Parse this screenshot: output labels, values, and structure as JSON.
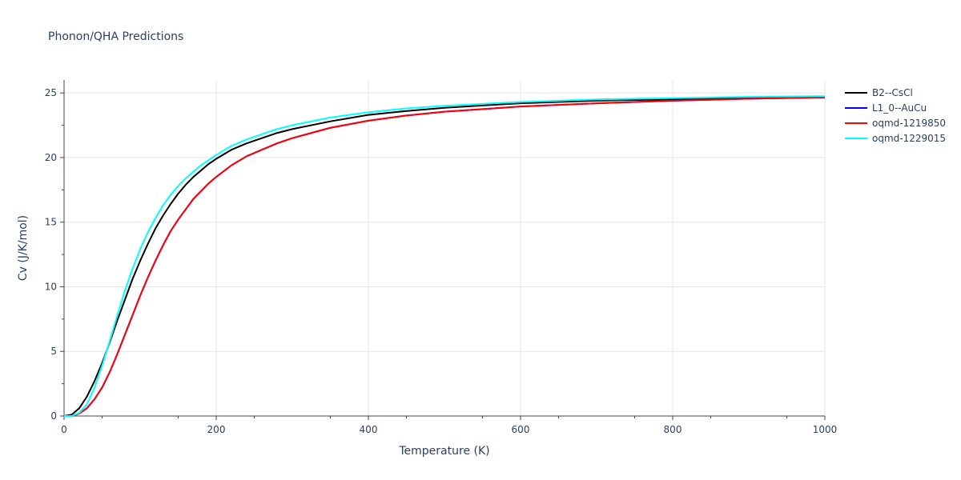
{
  "chart_data": {
    "type": "line",
    "title": "Phonon/QHA Predictions",
    "xlabel": "Temperature (K)",
    "ylabel": "Cv (J/K/mol)",
    "xlim": [
      0,
      1000
    ],
    "ylim": [
      0,
      26
    ],
    "x_ticks": [
      0,
      200,
      400,
      600,
      800,
      1000
    ],
    "y_ticks": [
      0,
      5,
      10,
      15,
      20,
      25
    ],
    "grid": true,
    "legend_position": "right",
    "series": [
      {
        "name": "B2--CsCl",
        "color": "#000000",
        "points": [
          [
            0,
            0
          ],
          [
            10,
            0.1
          ],
          [
            20,
            0.6
          ],
          [
            30,
            1.5
          ],
          [
            40,
            2.7
          ],
          [
            50,
            4.1
          ],
          [
            60,
            5.7
          ],
          [
            70,
            7.4
          ],
          [
            80,
            9.0
          ],
          [
            90,
            10.6
          ],
          [
            100,
            12.0
          ],
          [
            110,
            13.3
          ],
          [
            120,
            14.5
          ],
          [
            130,
            15.5
          ],
          [
            140,
            16.4
          ],
          [
            150,
            17.2
          ],
          [
            160,
            17.9
          ],
          [
            170,
            18.5
          ],
          [
            180,
            19.0
          ],
          [
            190,
            19.5
          ],
          [
            200,
            19.9
          ],
          [
            220,
            20.6
          ],
          [
            240,
            21.1
          ],
          [
            260,
            21.5
          ],
          [
            280,
            21.9
          ],
          [
            300,
            22.2
          ],
          [
            350,
            22.8
          ],
          [
            400,
            23.3
          ],
          [
            450,
            23.6
          ],
          [
            500,
            23.85
          ],
          [
            600,
            24.2
          ],
          [
            700,
            24.4
          ],
          [
            800,
            24.5
          ],
          [
            900,
            24.6
          ],
          [
            1000,
            24.65
          ]
        ]
      },
      {
        "name": "L1_0--AuCu",
        "color": "#0000ff",
        "points": [
          [
            0,
            0
          ],
          [
            10,
            0
          ],
          [
            20,
            0.2
          ],
          [
            30,
            0.6
          ],
          [
            40,
            1.3
          ],
          [
            50,
            2.2
          ],
          [
            60,
            3.4
          ],
          [
            70,
            4.8
          ],
          [
            80,
            6.3
          ],
          [
            90,
            7.8
          ],
          [
            100,
            9.3
          ],
          [
            110,
            10.7
          ],
          [
            120,
            12.0
          ],
          [
            130,
            13.2
          ],
          [
            140,
            14.3
          ],
          [
            150,
            15.2
          ],
          [
            160,
            16.0
          ],
          [
            170,
            16.8
          ],
          [
            180,
            17.4
          ],
          [
            190,
            18.0
          ],
          [
            200,
            18.5
          ],
          [
            220,
            19.4
          ],
          [
            240,
            20.1
          ],
          [
            260,
            20.6
          ],
          [
            280,
            21.1
          ],
          [
            300,
            21.5
          ],
          [
            350,
            22.3
          ],
          [
            400,
            22.85
          ],
          [
            450,
            23.25
          ],
          [
            500,
            23.55
          ],
          [
            600,
            23.95
          ],
          [
            700,
            24.2
          ],
          [
            800,
            24.4
          ],
          [
            900,
            24.55
          ],
          [
            1000,
            24.65
          ]
        ]
      },
      {
        "name": "oqmd-1219850",
        "color": "#ff0000",
        "points": [
          [
            0,
            0
          ],
          [
            10,
            0
          ],
          [
            20,
            0.2
          ],
          [
            30,
            0.6
          ],
          [
            40,
            1.3
          ],
          [
            50,
            2.2
          ],
          [
            60,
            3.4
          ],
          [
            70,
            4.8
          ],
          [
            80,
            6.3
          ],
          [
            90,
            7.8
          ],
          [
            100,
            9.3
          ],
          [
            110,
            10.7
          ],
          [
            120,
            12.0
          ],
          [
            130,
            13.2
          ],
          [
            140,
            14.3
          ],
          [
            150,
            15.2
          ],
          [
            160,
            16.0
          ],
          [
            170,
            16.8
          ],
          [
            180,
            17.4
          ],
          [
            190,
            18.0
          ],
          [
            200,
            18.5
          ],
          [
            220,
            19.4
          ],
          [
            240,
            20.1
          ],
          [
            260,
            20.6
          ],
          [
            280,
            21.1
          ],
          [
            300,
            21.5
          ],
          [
            350,
            22.3
          ],
          [
            400,
            22.85
          ],
          [
            450,
            23.25
          ],
          [
            500,
            23.55
          ],
          [
            600,
            23.95
          ],
          [
            700,
            24.2
          ],
          [
            800,
            24.4
          ],
          [
            900,
            24.55
          ],
          [
            1000,
            24.65
          ]
        ]
      },
      {
        "name": "oqmd-1229015",
        "color": "#00ffff",
        "points": [
          [
            0,
            0
          ],
          [
            10,
            0
          ],
          [
            20,
            0.25
          ],
          [
            30,
            0.9
          ],
          [
            40,
            2.2
          ],
          [
            50,
            3.9
          ],
          [
            60,
            5.8
          ],
          [
            70,
            7.8
          ],
          [
            80,
            9.7
          ],
          [
            90,
            11.4
          ],
          [
            100,
            12.9
          ],
          [
            110,
            14.2
          ],
          [
            120,
            15.3
          ],
          [
            130,
            16.3
          ],
          [
            140,
            17.1
          ],
          [
            150,
            17.8
          ],
          [
            160,
            18.4
          ],
          [
            170,
            18.9
          ],
          [
            180,
            19.4
          ],
          [
            190,
            19.8
          ],
          [
            200,
            20.2
          ],
          [
            220,
            20.9
          ],
          [
            240,
            21.4
          ],
          [
            260,
            21.8
          ],
          [
            280,
            22.2
          ],
          [
            300,
            22.5
          ],
          [
            350,
            23.1
          ],
          [
            400,
            23.5
          ],
          [
            450,
            23.8
          ],
          [
            500,
            24.0
          ],
          [
            600,
            24.3
          ],
          [
            700,
            24.5
          ],
          [
            800,
            24.6
          ],
          [
            900,
            24.7
          ],
          [
            1000,
            24.75
          ]
        ]
      }
    ]
  }
}
